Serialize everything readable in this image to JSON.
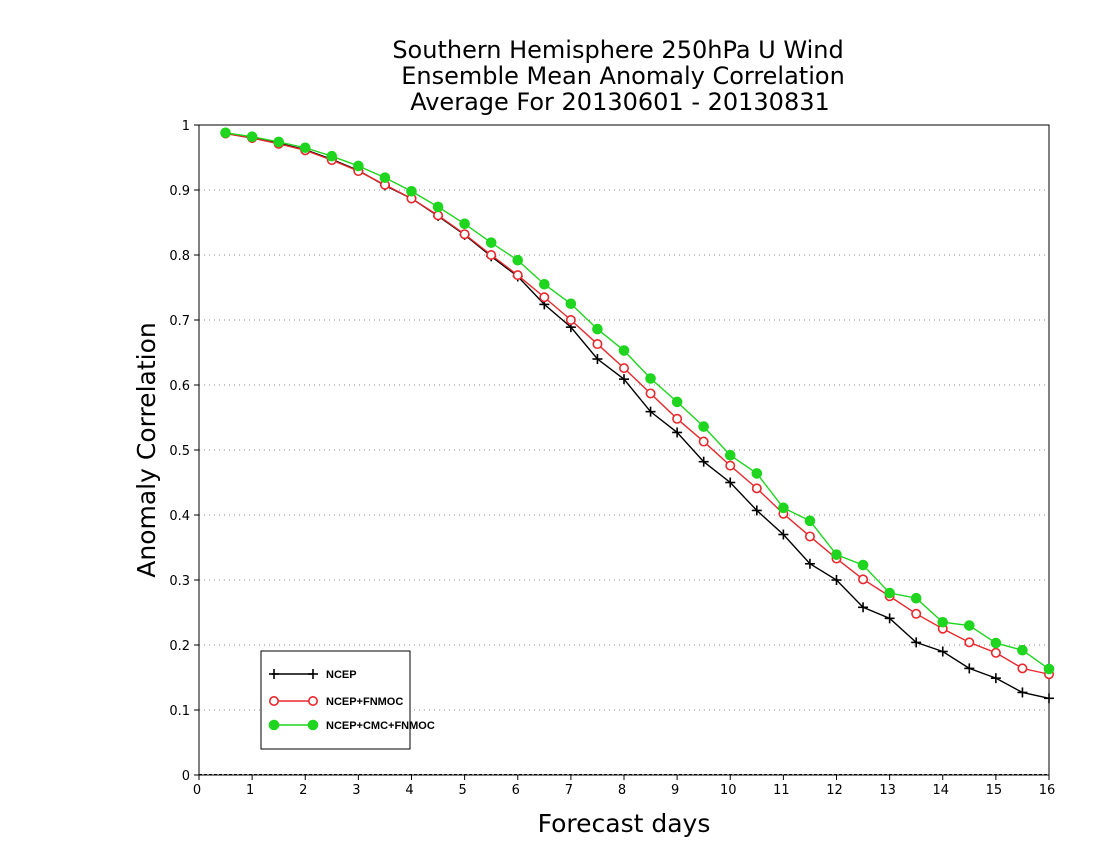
{
  "chart_data": {
    "type": "line",
    "title_lines": [
      "Southern Hemisphere 250hPa U Wind",
      "Ensemble Mean Anomaly Correlation",
      "Average For 20130601 - 20130831"
    ],
    "xlabel": "Forecast days",
    "ylabel": "Anomaly Correlation",
    "xlim": [
      0,
      16
    ],
    "ylim": [
      0,
      1
    ],
    "x_ticks": [
      0,
      1,
      2,
      3,
      4,
      5,
      6,
      7,
      8,
      9,
      10,
      11,
      12,
      13,
      14,
      15,
      16
    ],
    "x_tick_labels": [
      "0",
      "1",
      "2",
      "3",
      "4",
      "5",
      "6",
      "7",
      "8",
      "9",
      "10",
      "11",
      "12",
      "13",
      "14",
      "15",
      "16"
    ],
    "y_ticks": [
      0,
      0.1,
      0.2,
      0.3,
      0.4,
      0.5,
      0.6,
      0.7,
      0.8,
      0.9,
      1
    ],
    "y_tick_labels": [
      "0",
      "0.1",
      "0.2",
      "0.3",
      "0.4",
      "0.5",
      "0.6",
      "0.7",
      "0.8",
      "0.9",
      "1"
    ],
    "grid": "horizontal dotted",
    "legend_position": "bottom-left",
    "x": [
      0.5,
      1,
      1.5,
      2,
      2.5,
      3,
      3.5,
      4,
      4.5,
      5,
      5.5,
      6,
      6.5,
      7,
      7.5,
      8,
      8.5,
      9,
      9.5,
      10,
      10.5,
      11,
      11.5,
      12,
      12.5,
      13,
      13.5,
      14,
      14.5,
      15,
      15.5,
      16
    ],
    "series": [
      {
        "name": "NCEP",
        "color": "#000000",
        "marker": "plus",
        "values": [
          0.987,
          0.98,
          0.972,
          0.962,
          0.947,
          0.93,
          0.907,
          0.887,
          0.86,
          0.831,
          0.798,
          0.767,
          0.724,
          0.689,
          0.64,
          0.609,
          0.559,
          0.527,
          0.482,
          0.45,
          0.407,
          0.37,
          0.325,
          0.3,
          0.258,
          0.241,
          0.204,
          0.19,
          0.164,
          0.149,
          0.127,
          0.118
        ]
      },
      {
        "name": "NCEP+FNMOC",
        "color": "#e8282c",
        "marker": "open-circle",
        "values": [
          0.987,
          0.98,
          0.971,
          0.961,
          0.946,
          0.929,
          0.908,
          0.887,
          0.861,
          0.832,
          0.8,
          0.769,
          0.735,
          0.7,
          0.663,
          0.626,
          0.587,
          0.548,
          0.513,
          0.476,
          0.441,
          0.402,
          0.367,
          0.333,
          0.301,
          0.275,
          0.248,
          0.225,
          0.204,
          0.188,
          0.164,
          0.155
        ]
      },
      {
        "name": "NCEP+CMC+FNMOC",
        "color": "#1fd51f",
        "marker": "filled-circle",
        "values": [
          0.988,
          0.982,
          0.974,
          0.965,
          0.952,
          0.937,
          0.919,
          0.898,
          0.874,
          0.848,
          0.819,
          0.792,
          0.755,
          0.725,
          0.686,
          0.653,
          0.61,
          0.574,
          0.536,
          0.492,
          0.464,
          0.411,
          0.391,
          0.339,
          0.323,
          0.28,
          0.272,
          0.235,
          0.23,
          0.203,
          0.192,
          0.163
        ]
      }
    ]
  }
}
